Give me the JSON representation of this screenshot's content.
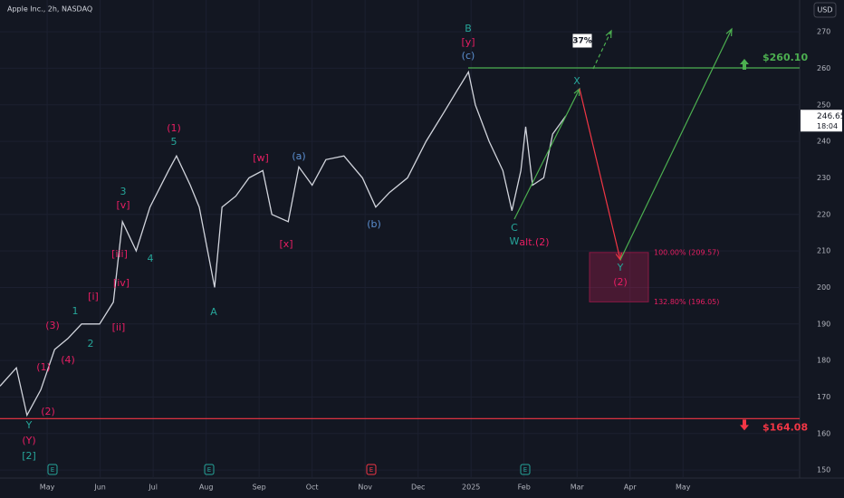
{
  "chart_data": {
    "type": "line",
    "title": "Apple Inc., 2h, NASDAQ",
    "currency": "USD",
    "x": [
      -0.89,
      -0.58,
      -0.38,
      -0.12,
      0.14,
      0.39,
      0.65,
      0.99,
      1.25,
      1.42,
      1.68,
      1.94,
      2.29,
      2.44,
      2.7,
      2.87,
      3.16,
      3.3,
      3.56,
      3.81,
      4.07,
      4.24,
      4.55,
      4.75,
      5.0,
      5.26,
      5.6,
      5.95,
      6.2,
      6.46,
      6.8,
      7.15,
      7.49,
      7.74,
      7.95,
      8.08,
      8.34,
      8.6,
      8.77,
      8.94,
      9.03,
      9.16,
      9.37,
      9.54,
      9.79
    ],
    "values": [
      173,
      178,
      165,
      172,
      183,
      186,
      190,
      190,
      196,
      218,
      210,
      222,
      232,
      236,
      228,
      222,
      200,
      222,
      225,
      230,
      232,
      220,
      218,
      233,
      228,
      235,
      236,
      230,
      222,
      226,
      230,
      240,
      248,
      254,
      259,
      250,
      240,
      232,
      221,
      232,
      244,
      228,
      230,
      242,
      247
    ],
    "color": "#d1d4dc",
    "xlim": [
      -0.89,
      14.2
    ],
    "xticks": [
      {
        "value": 0,
        "label": "May"
      },
      {
        "value": 1,
        "label": "Jun"
      },
      {
        "value": 2,
        "label": "Jul"
      },
      {
        "value": 3,
        "label": "Aug"
      },
      {
        "value": 4,
        "label": "Sep"
      },
      {
        "value": 5,
        "label": "Oct"
      },
      {
        "value": 6,
        "label": "Nov"
      },
      {
        "value": 7,
        "label": "Dec"
      },
      {
        "value": 8,
        "label": "2025"
      },
      {
        "value": 9,
        "label": "Feb"
      },
      {
        "value": 10,
        "label": "Mar"
      },
      {
        "value": 11,
        "label": "Apr"
      },
      {
        "value": 12,
        "label": "May"
      }
    ],
    "ylim": [
      147.8,
      278.7
    ],
    "yticks": [
      150,
      160,
      170,
      180,
      190,
      200,
      210,
      220,
      230,
      240,
      250,
      260,
      270
    ],
    "last_price": 246.65,
    "countdown": "18:04",
    "levels": [
      {
        "value": 260.1,
        "label": "$260.10",
        "color": "#4caf50"
      },
      {
        "value": 164.08,
        "label": "$164.08",
        "color": "#f23645"
      }
    ],
    "fib_zone": [
      {
        "value": 209.57,
        "label": "100.00% (209.57)"
      },
      {
        "value": 196.05,
        "label": "132.80% (196.05)"
      }
    ],
    "probability": "37%",
    "earnings": [
      "E",
      "E",
      "E",
      "E"
    ],
    "waves": [
      "B",
      "[y]",
      "(c)",
      "X",
      "(1)",
      "5",
      "3",
      "[v]",
      "[iii]",
      "4",
      "[iv]",
      "[i]",
      "1",
      "2",
      "[ii]",
      "(3)",
      "(4)",
      "(1)",
      "(2)",
      "Y",
      "(Y)",
      "[2]",
      "A",
      "[w]",
      "(a)",
      "[x]",
      "(b)",
      "C",
      "W",
      "alt.(2)",
      "Y",
      "(2)"
    ]
  }
}
